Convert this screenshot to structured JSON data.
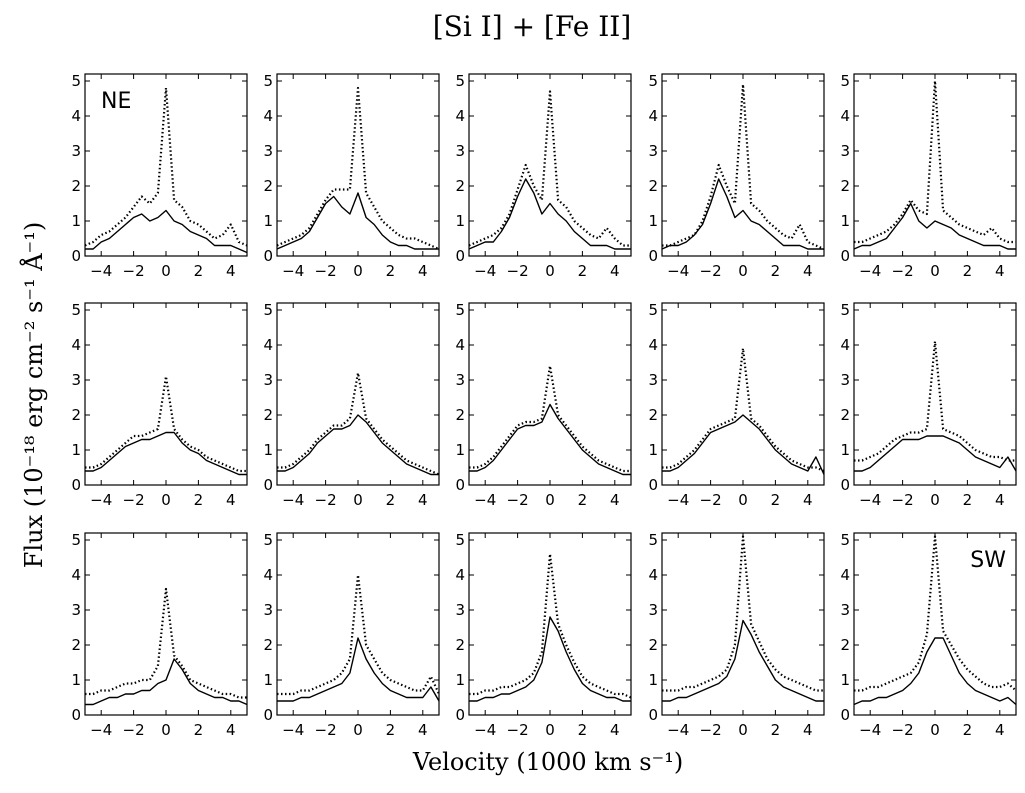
{
  "chart_data": {
    "type": "line",
    "title": "[Si I] + [Fe II]",
    "xlabel": "Velocity (1000 km s⁻¹)",
    "ylabel": "Flux (10⁻¹⁸ erg cm⁻² s⁻¹ Å⁻¹)",
    "xlim": [
      -5,
      5
    ],
    "ylim": [
      0,
      5.2
    ],
    "xticks": [
      "−4",
      "−2",
      "0",
      "2",
      "4"
    ],
    "yticks": [
      "0",
      "1",
      "2",
      "3",
      "4",
      "5"
    ],
    "grid": false,
    "layout": {
      "rows": 3,
      "cols": 5
    },
    "series_styles": {
      "solid": "solid line",
      "dotted": "dotted line"
    },
    "x": [
      -5,
      -4.5,
      -4,
      -3.5,
      -3,
      -2.5,
      -2,
      -1.5,
      -1,
      -0.5,
      0,
      0.5,
      1,
      1.5,
      2,
      2.5,
      3,
      3.5,
      4,
      4.5,
      5
    ],
    "panels": [
      {
        "label": "NE",
        "dotted": [
          0.3,
          0.4,
          0.6,
          0.7,
          0.9,
          1.1,
          1.4,
          1.7,
          1.5,
          1.8,
          4.8,
          1.6,
          1.4,
          1.0,
          0.9,
          0.7,
          0.5,
          0.6,
          0.9,
          0.4,
          0.3
        ],
        "solid": [
          0.2,
          0.2,
          0.4,
          0.5,
          0.7,
          0.9,
          1.1,
          1.2,
          1.0,
          1.1,
          1.3,
          1.0,
          0.9,
          0.7,
          0.6,
          0.5,
          0.3,
          0.3,
          0.3,
          0.2,
          0.1
        ]
      },
      {
        "label": "",
        "dotted": [
          0.3,
          0.4,
          0.5,
          0.6,
          0.8,
          1.2,
          1.6,
          1.9,
          1.9,
          1.9,
          4.8,
          1.8,
          1.4,
          1.0,
          0.8,
          0.6,
          0.5,
          0.5,
          0.4,
          0.3,
          0.2
        ],
        "solid": [
          0.2,
          0.3,
          0.4,
          0.5,
          0.7,
          1.1,
          1.5,
          1.7,
          1.4,
          1.2,
          1.8,
          1.1,
          0.9,
          0.6,
          0.4,
          0.3,
          0.3,
          0.2,
          0.2,
          0.2,
          0.2
        ]
      },
      {
        "label": "",
        "dotted": [
          0.3,
          0.4,
          0.5,
          0.6,
          0.8,
          1.2,
          1.9,
          2.6,
          2.0,
          1.6,
          4.7,
          1.6,
          1.4,
          1.0,
          0.8,
          0.6,
          0.5,
          0.8,
          0.5,
          0.3,
          0.3
        ],
        "solid": [
          0.2,
          0.3,
          0.4,
          0.4,
          0.7,
          1.1,
          1.7,
          2.2,
          1.8,
          1.2,
          1.5,
          1.2,
          1.0,
          0.7,
          0.5,
          0.3,
          0.3,
          0.3,
          0.2,
          0.2,
          0.2
        ]
      },
      {
        "label": "",
        "dotted": [
          0.3,
          0.3,
          0.4,
          0.5,
          0.6,
          1.0,
          1.7,
          2.6,
          2.0,
          1.5,
          4.9,
          1.5,
          1.3,
          1.0,
          0.8,
          0.6,
          0.5,
          0.9,
          0.4,
          0.3,
          0.2
        ],
        "solid": [
          0.2,
          0.3,
          0.3,
          0.4,
          0.6,
          0.9,
          1.5,
          2.2,
          1.7,
          1.1,
          1.3,
          1.0,
          0.9,
          0.7,
          0.5,
          0.3,
          0.3,
          0.3,
          0.2,
          0.2,
          0.2
        ]
      },
      {
        "label": "",
        "dotted": [
          0.4,
          0.4,
          0.5,
          0.6,
          0.7,
          0.9,
          1.2,
          1.6,
          1.3,
          1.2,
          5.0,
          1.3,
          1.1,
          0.9,
          0.8,
          0.7,
          0.6,
          0.8,
          0.5,
          0.4,
          0.4
        ],
        "solid": [
          0.2,
          0.3,
          0.3,
          0.4,
          0.5,
          0.8,
          1.1,
          1.5,
          1.0,
          0.8,
          1.0,
          0.9,
          0.8,
          0.6,
          0.5,
          0.4,
          0.3,
          0.3,
          0.3,
          0.2,
          0.2
        ]
      },
      {
        "label": "",
        "dotted": [
          0.5,
          0.5,
          0.6,
          0.8,
          1.0,
          1.2,
          1.4,
          1.4,
          1.5,
          1.6,
          3.1,
          1.6,
          1.3,
          1.1,
          1.0,
          0.8,
          0.7,
          0.6,
          0.5,
          0.4,
          0.4
        ],
        "solid": [
          0.4,
          0.4,
          0.5,
          0.7,
          0.9,
          1.1,
          1.2,
          1.3,
          1.3,
          1.4,
          1.5,
          1.5,
          1.2,
          1.0,
          0.9,
          0.7,
          0.6,
          0.5,
          0.4,
          0.3,
          0.3
        ]
      },
      {
        "label": "",
        "dotted": [
          0.5,
          0.5,
          0.6,
          0.8,
          1.0,
          1.3,
          1.5,
          1.7,
          1.7,
          1.9,
          3.2,
          1.9,
          1.6,
          1.3,
          1.1,
          0.9,
          0.7,
          0.6,
          0.5,
          0.4,
          0.3
        ],
        "solid": [
          0.4,
          0.4,
          0.5,
          0.7,
          0.9,
          1.2,
          1.4,
          1.6,
          1.6,
          1.7,
          2.0,
          1.8,
          1.5,
          1.2,
          1.0,
          0.8,
          0.6,
          0.5,
          0.4,
          0.3,
          0.3
        ]
      },
      {
        "label": "",
        "dotted": [
          0.5,
          0.5,
          0.6,
          0.8,
          1.1,
          1.4,
          1.7,
          1.8,
          1.8,
          1.9,
          3.4,
          2.0,
          1.7,
          1.4,
          1.1,
          0.9,
          0.7,
          0.6,
          0.5,
          0.4,
          0.4
        ],
        "solid": [
          0.4,
          0.4,
          0.5,
          0.7,
          1.0,
          1.3,
          1.6,
          1.7,
          1.7,
          1.8,
          2.3,
          1.9,
          1.6,
          1.3,
          1.0,
          0.8,
          0.6,
          0.5,
          0.4,
          0.3,
          0.3
        ]
      },
      {
        "label": "",
        "dotted": [
          0.5,
          0.5,
          0.6,
          0.8,
          1.0,
          1.3,
          1.6,
          1.7,
          1.8,
          1.9,
          3.9,
          1.9,
          1.7,
          1.4,
          1.1,
          0.9,
          0.7,
          0.6,
          0.5,
          0.5,
          0.4
        ],
        "solid": [
          0.4,
          0.4,
          0.5,
          0.7,
          0.9,
          1.2,
          1.5,
          1.6,
          1.7,
          1.8,
          2.0,
          1.8,
          1.6,
          1.3,
          1.0,
          0.8,
          0.6,
          0.5,
          0.4,
          0.8,
          0.3
        ]
      },
      {
        "label": "",
        "dotted": [
          0.7,
          0.7,
          0.8,
          0.9,
          1.1,
          1.3,
          1.4,
          1.5,
          1.5,
          1.6,
          4.1,
          1.6,
          1.5,
          1.4,
          1.2,
          1.0,
          0.9,
          0.8,
          0.8,
          0.7,
          0.7
        ],
        "solid": [
          0.4,
          0.4,
          0.5,
          0.7,
          0.9,
          1.1,
          1.3,
          1.3,
          1.3,
          1.4,
          1.4,
          1.4,
          1.3,
          1.2,
          1.0,
          0.8,
          0.7,
          0.6,
          0.5,
          0.8,
          0.4
        ]
      },
      {
        "label": "",
        "dotted": [
          0.6,
          0.6,
          0.7,
          0.7,
          0.8,
          0.9,
          0.9,
          1.0,
          1.0,
          1.4,
          3.6,
          1.7,
          1.4,
          1.0,
          0.9,
          0.8,
          0.7,
          0.6,
          0.6,
          0.5,
          0.5
        ],
        "solid": [
          0.3,
          0.3,
          0.4,
          0.5,
          0.5,
          0.6,
          0.6,
          0.7,
          0.7,
          0.9,
          1.0,
          1.6,
          1.3,
          0.9,
          0.7,
          0.6,
          0.5,
          0.5,
          0.4,
          0.4,
          0.3
        ]
      },
      {
        "label": "",
        "dotted": [
          0.6,
          0.6,
          0.6,
          0.7,
          0.7,
          0.8,
          0.9,
          1.0,
          1.2,
          1.6,
          4.0,
          2.0,
          1.6,
          1.2,
          1.0,
          0.9,
          0.8,
          0.7,
          0.7,
          1.1,
          0.6
        ],
        "solid": [
          0.4,
          0.4,
          0.4,
          0.5,
          0.5,
          0.6,
          0.7,
          0.8,
          0.9,
          1.2,
          2.2,
          1.6,
          1.2,
          0.9,
          0.7,
          0.6,
          0.5,
          0.5,
          0.5,
          0.8,
          0.4
        ]
      },
      {
        "label": "",
        "dotted": [
          0.6,
          0.6,
          0.7,
          0.7,
          0.8,
          0.8,
          0.9,
          1.0,
          1.2,
          1.8,
          4.6,
          2.6,
          2.0,
          1.5,
          1.1,
          0.9,
          0.8,
          0.7,
          0.6,
          0.6,
          0.5
        ],
        "solid": [
          0.4,
          0.4,
          0.5,
          0.5,
          0.6,
          0.6,
          0.7,
          0.8,
          1.0,
          1.5,
          2.8,
          2.4,
          1.8,
          1.3,
          0.9,
          0.7,
          0.6,
          0.5,
          0.5,
          0.4,
          0.4
        ]
      },
      {
        "label": "",
        "dotted": [
          0.7,
          0.7,
          0.7,
          0.8,
          0.8,
          0.9,
          1.0,
          1.1,
          1.3,
          2.0,
          5.1,
          2.6,
          2.1,
          1.6,
          1.3,
          1.1,
          1.0,
          0.9,
          0.8,
          0.7,
          0.7
        ],
        "solid": [
          0.4,
          0.4,
          0.5,
          0.5,
          0.6,
          0.7,
          0.8,
          0.9,
          1.1,
          1.6,
          2.7,
          2.3,
          1.8,
          1.4,
          1.0,
          0.8,
          0.7,
          0.6,
          0.5,
          0.4,
          0.4
        ]
      },
      {
        "label": "SW",
        "dotted": [
          0.7,
          0.7,
          0.8,
          0.8,
          0.9,
          1.0,
          1.1,
          1.2,
          1.5,
          2.3,
          5.1,
          2.4,
          2.0,
          1.6,
          1.3,
          1.1,
          0.9,
          0.8,
          0.8,
          0.9,
          0.7
        ],
        "solid": [
          0.3,
          0.4,
          0.4,
          0.5,
          0.5,
          0.6,
          0.7,
          0.9,
          1.2,
          1.8,
          2.2,
          2.2,
          1.7,
          1.2,
          0.9,
          0.7,
          0.6,
          0.5,
          0.4,
          0.5,
          0.3
        ]
      }
    ]
  }
}
